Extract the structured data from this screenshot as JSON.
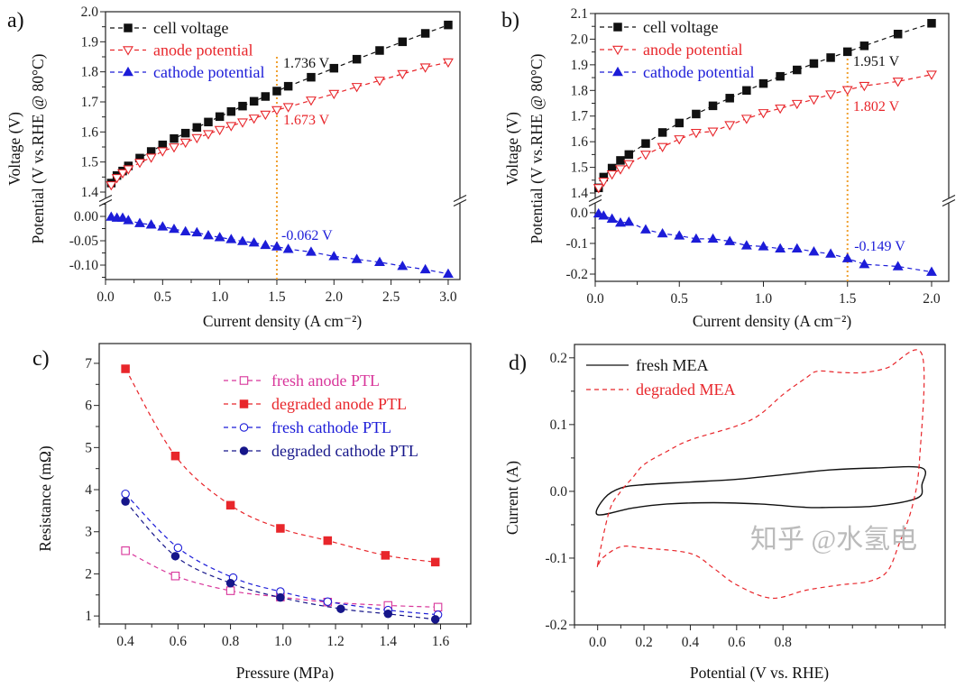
{
  "colors": {
    "black": "#111111",
    "red": "#e8262b",
    "blue": "#1c1cd8",
    "magenta": "#d8359a",
    "navy": "#16168a",
    "orange": "#f0a030"
  },
  "watermark": "知乎 @水氢电",
  "chart_data": [
    {
      "panel_label": "a)",
      "type": "line",
      "xlabel": "Current density (A cm⁻²)",
      "ylabel": [
        "Voltage (V)",
        "Potential (V vs.RHE @ 80°C)"
      ],
      "xlim": [
        0,
        3.103
      ],
      "xticks": [
        "0.0",
        "0.5",
        "1.0",
        "1.5",
        "2.0",
        "2.5",
        "3.0"
      ],
      "y_break": true,
      "segments": [
        {
          "ylim": [
            1.379,
            2.0
          ],
          "yticks": [
            "1.4",
            "1.5",
            "1.6",
            "1.7",
            "1.8",
            "1.9",
            "2.0"
          ]
        },
        {
          "ylim": [
            -0.1296,
            0.0278
          ],
          "yticks": [
            "0.00",
            "-0.05",
            "-0.10"
          ]
        }
      ],
      "vline": 1.5,
      "legend": "top-left",
      "series": [
        {
          "name": "cell voltage",
          "color": "black",
          "marker": "square-filled",
          "segment": 0,
          "x": [
            0.05,
            0.1,
            0.15,
            0.2,
            0.3,
            0.4,
            0.5,
            0.6,
            0.7,
            0.8,
            0.9,
            1.0,
            1.1,
            1.2,
            1.3,
            1.4,
            1.5,
            1.6,
            1.8,
            2.0,
            2.2,
            2.4,
            2.6,
            2.8,
            3.0
          ],
          "y": [
            1.43,
            1.455,
            1.47,
            1.487,
            1.513,
            1.535,
            1.557,
            1.578,
            1.596,
            1.615,
            1.633,
            1.651,
            1.668,
            1.686,
            1.702,
            1.718,
            1.736,
            1.752,
            1.782,
            1.812,
            1.842,
            1.871,
            1.9,
            1.928,
            1.956
          ]
        },
        {
          "name": "anode potential",
          "color": "red",
          "marker": "triangle-down-open",
          "segment": 0,
          "x": [
            0.05,
            0.1,
            0.15,
            0.2,
            0.3,
            0.4,
            0.5,
            0.6,
            0.7,
            0.8,
            0.9,
            1.0,
            1.1,
            1.2,
            1.3,
            1.4,
            1.5,
            1.6,
            1.8,
            2.0,
            2.2,
            2.4,
            2.6,
            2.8,
            3.0
          ],
          "y": [
            1.423,
            1.447,
            1.463,
            1.476,
            1.498,
            1.515,
            1.536,
            1.549,
            1.565,
            1.58,
            1.593,
            1.607,
            1.62,
            1.632,
            1.645,
            1.658,
            1.673,
            1.683,
            1.705,
            1.727,
            1.75,
            1.771,
            1.793,
            1.815,
            1.832
          ]
        },
        {
          "name": "cathode potential",
          "color": "blue",
          "marker": "triangle-up-filled",
          "segment": 1,
          "x": [
            0.05,
            0.1,
            0.15,
            0.2,
            0.3,
            0.4,
            0.5,
            0.6,
            0.7,
            0.8,
            0.9,
            1.0,
            1.1,
            1.2,
            1.3,
            1.4,
            1.5,
            1.6,
            1.8,
            2.0,
            2.2,
            2.4,
            2.6,
            2.8,
            3.0
          ],
          "y": [
            -0.001,
            -0.003,
            -0.003,
            -0.008,
            -0.014,
            -0.017,
            -0.021,
            -0.026,
            -0.031,
            -0.033,
            -0.039,
            -0.043,
            -0.047,
            -0.051,
            -0.054,
            -0.059,
            -0.062,
            -0.067,
            -0.073,
            -0.082,
            -0.088,
            -0.094,
            -0.102,
            -0.109,
            -0.118
          ]
        }
      ],
      "annotations": [
        {
          "text": "1.736 V",
          "color": "black",
          "x": 1.555,
          "y": 1.814,
          "segment": 0
        },
        {
          "text": "1.673 V",
          "color": "red",
          "x": 1.555,
          "y": 1.625,
          "segment": 0
        },
        {
          "text": "-0.062 V",
          "color": "blue",
          "x": 1.54,
          "y": -0.048,
          "segment": 1
        }
      ]
    },
    {
      "panel_label": "b)",
      "type": "line",
      "xlabel": "Current density (A cm⁻²)",
      "ylabel": [
        "Voltage (V)",
        "Potential (V vs.RHE @ 80°C)"
      ],
      "xlim": [
        0,
        2.102
      ],
      "xticks": [
        "0.0",
        "0.5",
        "1.0",
        "1.5",
        "2.0"
      ],
      "y_break": true,
      "segments": [
        {
          "ylim": [
            1.379,
            2.1
          ],
          "yticks": [
            "1.4",
            "1.5",
            "1.6",
            "1.7",
            "1.8",
            "1.9",
            "2.0",
            "2.1"
          ]
        },
        {
          "ylim": [
            -0.2235,
            0.032
          ],
          "yticks": [
            "0.0",
            "-0.1",
            "-0.2"
          ]
        }
      ],
      "vline": 1.5,
      "legend": "top-left",
      "series": [
        {
          "name": "cell voltage",
          "color": "black",
          "marker": "square-filled",
          "segment": 0,
          "x": [
            0.02,
            0.05,
            0.1,
            0.15,
            0.2,
            0.3,
            0.4,
            0.5,
            0.6,
            0.7,
            0.8,
            0.9,
            1.0,
            1.1,
            1.2,
            1.3,
            1.4,
            1.5,
            1.6,
            1.8,
            2.0
          ],
          "y": [
            1.42,
            1.462,
            1.497,
            1.527,
            1.55,
            1.593,
            1.636,
            1.673,
            1.708,
            1.74,
            1.77,
            1.8,
            1.827,
            1.855,
            1.88,
            1.905,
            1.928,
            1.951,
            1.974,
            2.02,
            2.062
          ]
        },
        {
          "name": "anode potential",
          "color": "red",
          "marker": "triangle-down-open",
          "segment": 0,
          "x": [
            0.02,
            0.05,
            0.1,
            0.15,
            0.2,
            0.3,
            0.4,
            0.5,
            0.6,
            0.7,
            0.8,
            0.9,
            1.0,
            1.1,
            1.2,
            1.3,
            1.4,
            1.5,
            1.6,
            1.8,
            2.0
          ],
          "y": [
            1.42,
            1.445,
            1.473,
            1.493,
            1.513,
            1.55,
            1.58,
            1.61,
            1.635,
            1.64,
            1.665,
            1.69,
            1.712,
            1.73,
            1.748,
            1.765,
            1.785,
            1.802,
            1.818,
            1.835,
            1.862
          ]
        },
        {
          "name": "cathode potential",
          "color": "blue",
          "marker": "triangle-up-filled",
          "segment": 1,
          "x": [
            0.02,
            0.05,
            0.1,
            0.15,
            0.2,
            0.3,
            0.4,
            0.5,
            0.6,
            0.7,
            0.8,
            0.9,
            1.0,
            1.1,
            1.2,
            1.3,
            1.4,
            1.5,
            1.6,
            1.8,
            2.0
          ],
          "y": [
            -0.003,
            -0.01,
            -0.02,
            -0.033,
            -0.03,
            -0.055,
            -0.068,
            -0.075,
            -0.085,
            -0.085,
            -0.093,
            -0.107,
            -0.11,
            -0.117,
            -0.117,
            -0.127,
            -0.134,
            -0.149,
            -0.168,
            -0.175,
            -0.193
          ]
        }
      ],
      "annotations": [
        {
          "text": "1.951 V",
          "color": "black",
          "x": 1.533,
          "y": 1.896,
          "segment": 0
        },
        {
          "text": "1.802 V",
          "color": "red",
          "x": 1.533,
          "y": 1.72,
          "segment": 0
        },
        {
          "text": "-0.149 V",
          "color": "blue",
          "x": 1.54,
          "y": -0.1235,
          "segment": 1
        }
      ]
    },
    {
      "panel_label": "c)",
      "type": "scatter",
      "xlabel": "Pressure (MPa)",
      "ylabel": [
        "Resistance (mΩ)"
      ],
      "xlim": [
        0.3,
        1.715
      ],
      "xticks": [
        "0.4",
        "0.6",
        "0.8",
        "1.0",
        "1.2",
        "1.4",
        "1.6"
      ],
      "y_break": false,
      "segments": [
        {
          "ylim": [
            0.81,
            7.47
          ],
          "yticks": [
            "1",
            "2",
            "3",
            "4",
            "5",
            "6",
            "7"
          ]
        }
      ],
      "legend": "top-right",
      "series": [
        {
          "name": "fresh anode PTL",
          "color": "magenta",
          "marker": "square-open",
          "segment": 0,
          "x": [
            0.4,
            0.59,
            0.8,
            0.99,
            1.17,
            1.4,
            1.59
          ],
          "y": [
            2.55,
            1.95,
            1.6,
            1.45,
            1.33,
            1.25,
            1.21
          ]
        },
        {
          "name": "degraded anode PTL",
          "color": "red",
          "marker": "square-filled",
          "segment": 0,
          "x": [
            0.4,
            0.59,
            0.8,
            0.99,
            1.17,
            1.39,
            1.58
          ],
          "y": [
            6.87,
            4.8,
            3.63,
            3.08,
            2.79,
            2.44,
            2.28
          ]
        },
        {
          "name": "fresh cathode PTL",
          "color": "blue",
          "marker": "circle-open",
          "segment": 0,
          "x": [
            0.4,
            0.6,
            0.81,
            0.99,
            1.17,
            1.4,
            1.59
          ],
          "y": [
            3.9,
            2.62,
            1.91,
            1.58,
            1.34,
            1.14,
            1.03
          ]
        },
        {
          "name": "degraded cathode PTL",
          "color": "navy",
          "marker": "circle-filled",
          "segment": 0,
          "x": [
            0.4,
            0.59,
            0.8,
            0.99,
            1.22,
            1.4,
            1.58
          ],
          "y": [
            3.72,
            2.42,
            1.78,
            1.44,
            1.17,
            1.05,
            0.92
          ]
        }
      ],
      "annotations": []
    },
    {
      "panel_label": "d)",
      "type": "line",
      "xlabel": "Potential (V vs. RHE)",
      "ylabel": [
        "Current (A)"
      ],
      "xlim": [
        -0.1,
        1.5
      ],
      "xticks": [
        "0.0",
        "0.2",
        "0.4",
        "0.6",
        "0.8"
      ],
      "y_break": false,
      "segments": [
        {
          "ylim": [
            -0.2,
            0.22
          ],
          "yticks": [
            "-0.2",
            "-0.1",
            "0.0",
            "0.1",
            "0.2"
          ]
        }
      ],
      "legend": "top-left",
      "series": [
        {
          "name": "fresh MEA",
          "color": "black",
          "marker": "none",
          "line": "solid",
          "closed": true,
          "segment": 0,
          "x": [
            0.0,
            0.03,
            0.1,
            0.2,
            0.4,
            0.6,
            0.8,
            1.0,
            1.2,
            1.4,
            1.4,
            1.38,
            1.2,
            1.0,
            0.9,
            0.7,
            0.5,
            0.3,
            0.15
          ],
          "y": [
            -0.035,
            -0.01,
            0.005,
            0.01,
            0.014,
            0.018,
            0.025,
            0.032,
            0.035,
            0.035,
            0.01,
            -0.01,
            -0.022,
            -0.024,
            -0.024,
            -0.019,
            -0.017,
            -0.019,
            -0.025
          ]
        },
        {
          "name": "degraded MEA",
          "color": "red",
          "marker": "none",
          "line": "dashed",
          "closed": true,
          "segment": 0,
          "x": [
            0.0,
            0.05,
            0.1,
            0.15,
            0.2,
            0.3,
            0.4,
            0.6,
            0.7,
            0.8,
            0.9,
            0.95,
            1.05,
            1.15,
            1.25,
            1.4,
            1.39,
            1.36,
            1.3,
            1.25,
            1.17,
            1.05,
            0.9,
            0.75,
            0.6,
            0.5,
            0.4,
            0.2,
            0.1,
            0.02
          ],
          "y": [
            -0.11,
            -0.03,
            0.0,
            0.02,
            0.04,
            0.06,
            0.077,
            0.098,
            0.115,
            0.145,
            0.17,
            0.18,
            0.178,
            0.178,
            0.185,
            0.205,
            0.05,
            -0.02,
            -0.08,
            -0.12,
            -0.135,
            -0.14,
            -0.148,
            -0.16,
            -0.14,
            -0.115,
            -0.093,
            -0.085,
            -0.083,
            -0.1
          ]
        }
      ],
      "annotations": []
    }
  ]
}
